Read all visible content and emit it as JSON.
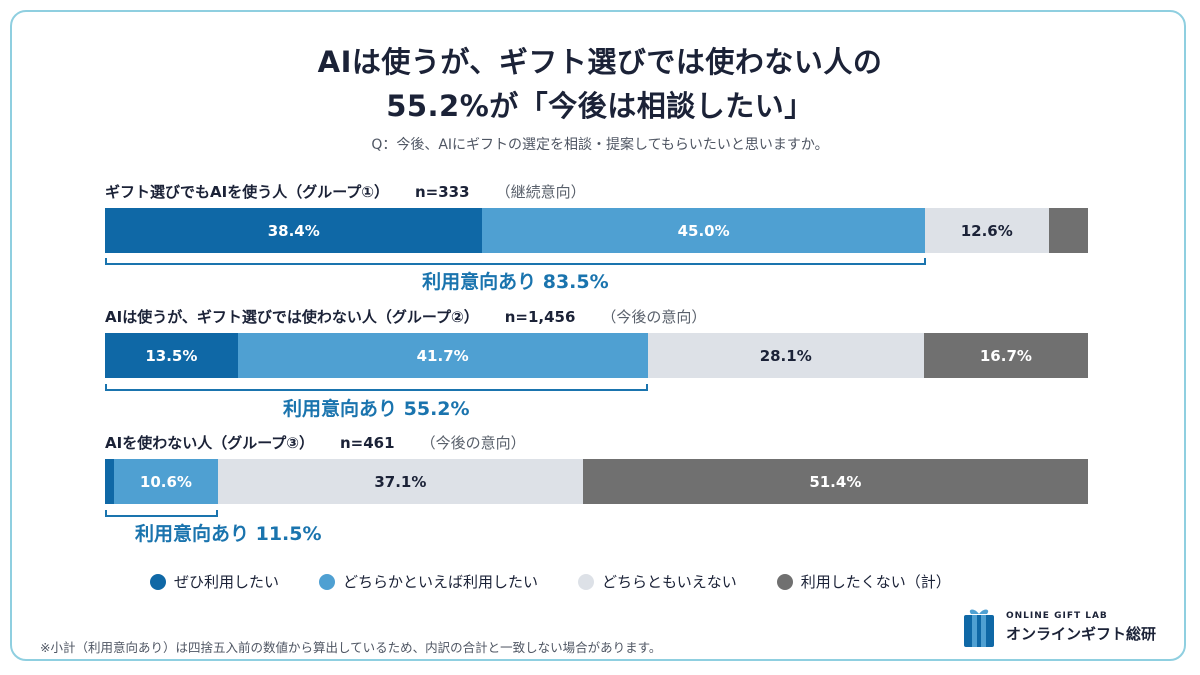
{
  "title_line1": "AIは使うが、ギフト選びでは使わない人の",
  "title_line2": "55.2%が「今後は相談したい」",
  "question": "Q：今後、AIにギフトの選定を相談・提案してもらいたいと思いますか。",
  "colors": {
    "definitely": "#0f68a6",
    "somewhat": "#4fa0d2",
    "neutral": "#dde1e7",
    "not": "#707070",
    "accent": "#1a74ae"
  },
  "chart_data": {
    "type": "bar",
    "orientation": "horizontal-stacked-100",
    "categories": [
      "ギフト選びでもAIを使う人（グループ①）",
      "AIは使うが、ギフト選びでは使わない人（グループ②）",
      "AIを使わない人（グループ③）"
    ],
    "groups": [
      {
        "label": "ギフト選びでもAIを使う人（グループ①）",
        "n": "n=333",
        "note": "（継続意向）",
        "values": [
          38.4,
          45.0,
          12.6,
          4.0
        ],
        "labels": [
          "38.4%",
          "45.0%",
          "12.6%",
          ""
        ],
        "subtotal_label": "利用意向あり 83.5%",
        "subtotal": 83.5
      },
      {
        "label": "AIは使うが、ギフト選びでは使わない人（グループ②）",
        "n": "n=1,456",
        "note": "（今後の意向）",
        "values": [
          13.5,
          41.7,
          28.1,
          16.7
        ],
        "labels": [
          "13.5%",
          "41.7%",
          "28.1%",
          "16.7%"
        ],
        "subtotal_label": "利用意向あり 55.2%",
        "subtotal": 55.2
      },
      {
        "label": "AIを使わない人（グループ③）",
        "n": "n=461",
        "note": "（今後の意向）",
        "values": [
          0.9,
          10.6,
          37.1,
          51.4
        ],
        "labels": [
          "",
          "10.6%",
          "37.1%",
          "51.4%"
        ],
        "subtotal_label": "利用意向あり 11.5%",
        "subtotal": 11.5
      }
    ],
    "series": [
      {
        "name": "ぜひ利用したい",
        "color": "#0f68a6"
      },
      {
        "name": "どちらかといえば利用したい",
        "color": "#4fa0d2"
      },
      {
        "name": "どちらともいえない",
        "color": "#dde1e7"
      },
      {
        "name": "利用したくない（計）",
        "color": "#707070"
      }
    ],
    "legend_position": "bottom",
    "xlim": [
      0,
      100
    ]
  },
  "footnote": "※小計（利用意向あり）は四捨五入前の数値から算出しているため、内訳の合計と一致しない場合があります。",
  "logo": {
    "en": "ONLINE GIFT LAB",
    "ja": "オンラインギフト総研",
    "icon": "gift-box-icon"
  }
}
